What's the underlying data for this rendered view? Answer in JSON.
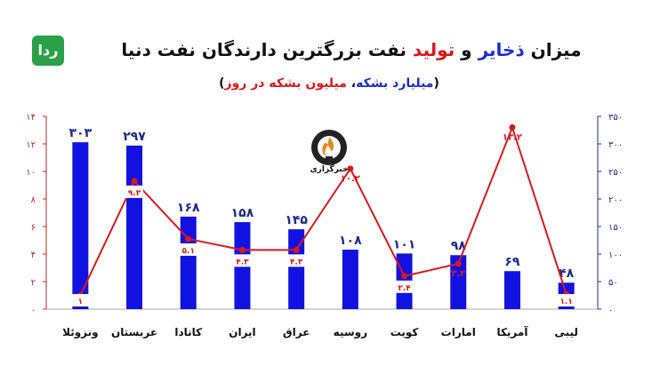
{
  "logo": {
    "text": "ردا",
    "color": "#2aa149"
  },
  "header": {
    "title_part1": "میزان ",
    "title_part2": "ذخایر",
    "title_part3": " و ",
    "title_part4": "تولید",
    "title_part5": " نفت بزرگترین دارندگان نفت دنیا",
    "subtitle_part1": "(",
    "subtitle_part2": "میلیارد بشکه",
    "subtitle_part3": "، ",
    "subtitle_part4": "میلیون بشکه در روز",
    "subtitle_part5": ")"
  },
  "emblem": {
    "text": "خبرگزاری",
    "icon": "oil-flame-icon"
  },
  "colors": {
    "bar": "#1212e0",
    "line": "#d8191e",
    "axis_left": "#cc2222",
    "axis_right": "#1f2b8a"
  },
  "chart_data": {
    "type": "bar",
    "categories": [
      "ونزوئلا",
      "عربستان",
      "کانادا",
      "ایران",
      "عراق",
      "روسیه",
      "کویت",
      "امارات",
      "آمریکا",
      "لیبی"
    ],
    "series": [
      {
        "values": [
          303,
          297,
          168,
          158,
          145,
          108,
          101,
          98,
          69,
          48
        ],
        "labels": [
          "۳۰۳",
          "۲۹۷",
          "۱۶۸",
          "۱۵۸",
          "۱۴۵",
          "۱۰۸",
          "۱۰۱",
          "۹۸",
          "۶۹",
          "۴۸"
        ]
      },
      {
        "values": [
          1,
          9.3,
          5.1,
          4.3,
          4.3,
          10.2,
          2.4,
          3.3,
          13.2,
          1.1
        ],
        "labels": [
          "۱",
          "۹.۳",
          "۵.۱",
          "۴.۳",
          "۴.۳",
          "۱۰.۲",
          "۲.۴",
          "۳.۳",
          "۱۳.۲",
          "۱.۱"
        ]
      }
    ],
    "y_right": {
      "range": [
        0,
        350
      ],
      "ticks": [
        "۰",
        "۵۰",
        "۱۰۰",
        "۱۵۰",
        "۲۰۰",
        "۲۵۰",
        "۳۰۰",
        "۳۵۰"
      ]
    },
    "y_left": {
      "range": [
        0,
        14
      ],
      "ticks": [
        "۰",
        "۲",
        "۴",
        "۶",
        "۸",
        "۱۰",
        "۱۲",
        "۱۴"
      ]
    }
  }
}
